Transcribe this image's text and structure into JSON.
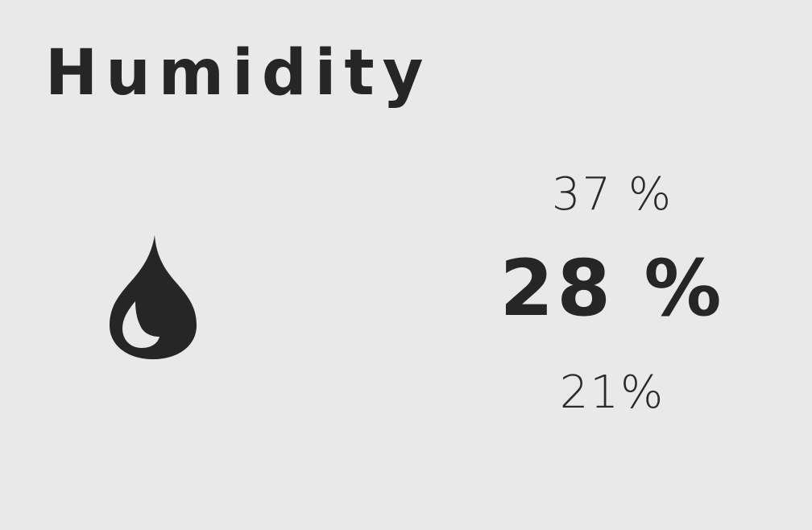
{
  "widget": {
    "title": "Humidity",
    "icon": "water-drop-icon",
    "colors": {
      "background": "#e9e9e9",
      "foreground": "#262626"
    },
    "readings": {
      "high": "37 %",
      "current": "28 %",
      "low": "21%"
    }
  }
}
